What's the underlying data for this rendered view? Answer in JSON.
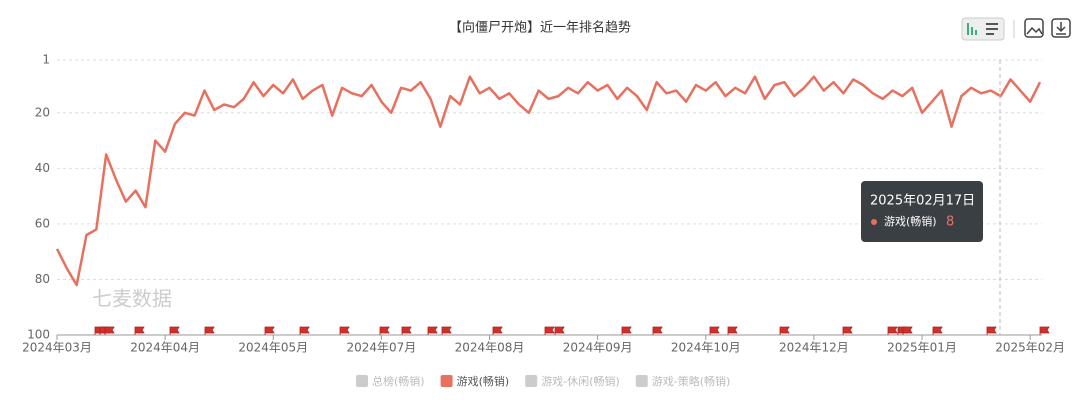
{
  "chart_data": {
    "type": "line",
    "title": "【向僵尸开炮】近一年排名趋势",
    "watermark": "七麦数据",
    "categories": [
      "2024年03月",
      null,
      null,
      null,
      null,
      null,
      null,
      null,
      null,
      null,
      null,
      "2024年04月",
      null,
      null,
      null,
      null,
      null,
      null,
      null,
      null,
      null,
      null,
      "2024年05月",
      null,
      null,
      null,
      null,
      null,
      null,
      null,
      null,
      null,
      null,
      "2024年07月",
      null,
      null,
      null,
      null,
      null,
      null,
      null,
      null,
      null,
      null,
      "2024年08月",
      null,
      null,
      null,
      null,
      null,
      null,
      null,
      null,
      null,
      null,
      "2024年09月",
      null,
      null,
      null,
      null,
      null,
      null,
      null,
      null,
      null,
      null,
      "2024年10月",
      null,
      null,
      null,
      null,
      null,
      null,
      null,
      null,
      null,
      null,
      "2024年12月",
      null,
      null,
      null,
      null,
      null,
      null,
      null,
      null,
      null,
      null,
      "2025年01月",
      null,
      null,
      null,
      null,
      null,
      null,
      null,
      null,
      null,
      null,
      "2025年02月",
      null
    ],
    "series": [
      {
        "name": "游戏(畅销)",
        "color": "#e8705f",
        "values": [
          69,
          76,
          82,
          64,
          62,
          35,
          44,
          52,
          48,
          54,
          30,
          34,
          24,
          20,
          21,
          12,
          19,
          17,
          18,
          15,
          9,
          14,
          10,
          13,
          8,
          15,
          12,
          10,
          21,
          11,
          13,
          14,
          10,
          16,
          20,
          11,
          12,
          9,
          15,
          25,
          14,
          17,
          7,
          13,
          11,
          15,
          13,
          17,
          20,
          12,
          15,
          14,
          11,
          13,
          9,
          12,
          10,
          15,
          11,
          14,
          19,
          9,
          13,
          12,
          16,
          10,
          12,
          9,
          14,
          11,
          13,
          7,
          15,
          10,
          9,
          14,
          11,
          7,
          12,
          9,
          13,
          8,
          10,
          13,
          15,
          12,
          14,
          11,
          20,
          16,
          12,
          25,
          14,
          11,
          13,
          12,
          14,
          8,
          12,
          16,
          9
        ]
      }
    ],
    "legend": [
      {
        "name": "总榜(畅销)",
        "color": "#cccccc"
      },
      {
        "name": "游戏(畅销)",
        "color": "#e8705f"
      },
      {
        "name": "游戏-休闲(畅销)",
        "color": "#cccccc"
      },
      {
        "name": "游戏-策略(畅销)",
        "color": "#cccccc"
      }
    ],
    "ylim": [
      1,
      100
    ],
    "yticks": [
      1,
      20,
      40,
      60,
      80,
      100
    ],
    "y_inverted": true,
    "grid": true,
    "tooltip": {
      "date": "2025年02月17日",
      "series": "游戏(畅销)",
      "value": "8"
    }
  }
}
